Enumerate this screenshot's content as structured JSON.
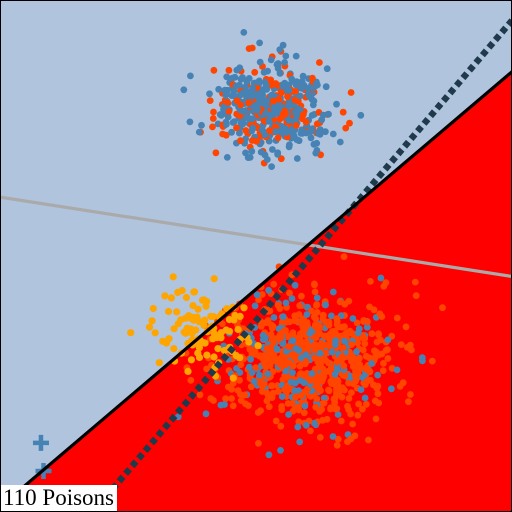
{
  "caption": "110 Poisons",
  "colors": {
    "region_blue": "#b0c4de",
    "region_red": "#ff0000",
    "class_blue": "#4682b4",
    "class_red": "#ff4500",
    "poison": "#ffa500",
    "old_boundary": "#aaaaaa",
    "dotted_boundary": "#1f3a4a",
    "solid_boundary": "#000000"
  },
  "chart_data": {
    "type": "scatter",
    "title": "",
    "xlabel": "",
    "ylabel": "",
    "xlim": [
      0,
      10
    ],
    "ylim": [
      0,
      10
    ],
    "grid": false,
    "legend": "none",
    "decision_boundaries": [
      {
        "style": "solid",
        "color": "black",
        "points": [
          [
            0,
            0.1
          ],
          [
            10,
            8.6
          ]
        ]
      },
      {
        "style": "dotted",
        "color": "dark slate",
        "points": [
          [
            2.2,
            0.45
          ],
          [
            10,
            9.6
          ]
        ]
      },
      {
        "style": "solid",
        "color": "gray",
        "points": [
          [
            0,
            6.15
          ],
          [
            10,
            4.6
          ]
        ]
      }
    ],
    "regions": [
      {
        "side": "upper-left",
        "color": "light steel blue"
      },
      {
        "side": "lower-right",
        "color": "red"
      }
    ],
    "clusters": [
      {
        "center": [
          5.3,
          7.9
        ],
        "spread": [
          0.55,
          0.42
        ],
        "count": 520,
        "mix": {
          "class_blue": 0.68,
          "class_red": 0.32
        }
      },
      {
        "center": [
          6.0,
          3.0
        ],
        "spread": [
          0.85,
          0.62
        ],
        "count": 820,
        "mix": {
          "class_blue": 0.25,
          "class_red": 0.75
        }
      }
    ],
    "poison_points": {
      "count": 110,
      "center": [
        3.9,
        3.6
      ],
      "spread": [
        0.45,
        0.4
      ]
    },
    "plus_markers": [
      [
        0.8,
        1.35
      ],
      [
        0.85,
        0.8
      ]
    ]
  }
}
